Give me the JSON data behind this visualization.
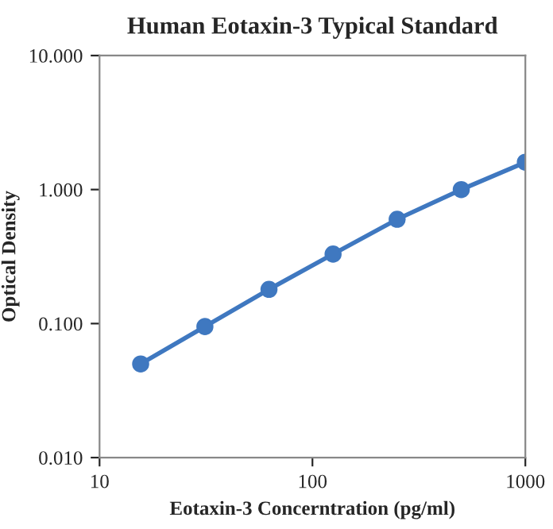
{
  "chart_data": {
    "type": "line",
    "title": "Human Eotaxin-3 Typical Standard",
    "xlabel": "Eotaxin-3 Concerntration (pg/ml)",
    "ylabel": "Optical Density",
    "x": [
      15.6,
      31.25,
      62.5,
      125,
      250,
      500,
      1000
    ],
    "series": [
      {
        "color": "#3f78c0",
        "values": [
          0.05,
          0.095,
          0.18,
          0.33,
          0.6,
          1.0,
          1.6
        ]
      }
    ],
    "log": "xy",
    "xlim": [
      10,
      1000
    ],
    "ylim": [
      0.01,
      10
    ],
    "xticks": [
      10,
      100,
      1000
    ],
    "yticks": [
      {
        "value": 0.01,
        "label": "0.010"
      },
      {
        "value": 0.1,
        "label": "0.100"
      },
      {
        "value": 1,
        "label": "1.000"
      },
      {
        "value": 10,
        "label": "10.000"
      }
    ],
    "marker": "circle",
    "line_style": "solid",
    "grid": false
  }
}
